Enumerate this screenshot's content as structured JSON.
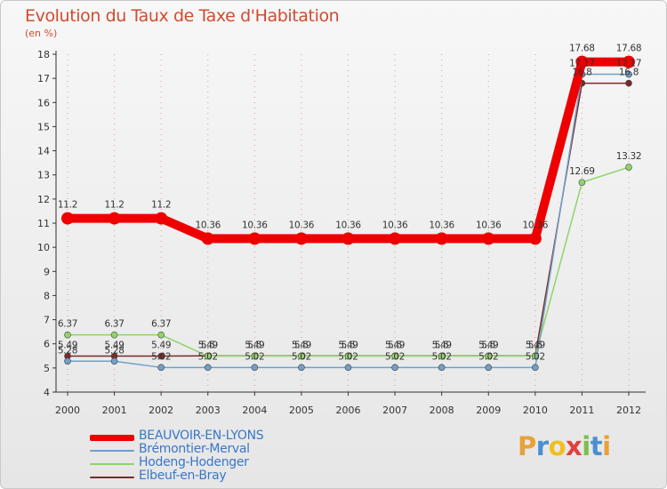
{
  "title": "Evolution du Taux de Taxe d'Habitation",
  "unit": "(en %)",
  "brand": {
    "text": "Proxiti",
    "colors": [
      "#e8a23a",
      "#4a8fd0",
      "#f0c020",
      "#e04040",
      "#7cc04a",
      "#4a8fd0",
      "#e8a23a"
    ]
  },
  "colors": {
    "title": "#d24b2f",
    "axis": "#333333",
    "grid": "#d94a4a",
    "legend_text": "#3a77c8"
  },
  "chart_data": {
    "type": "line",
    "title": "Evolution du Taux de Taxe d'Habitation",
    "ylabel": "(en %)",
    "xlabel": "",
    "ylim": [
      4,
      18
    ],
    "yticks": [
      4,
      5,
      6,
      7,
      8,
      9,
      10,
      11,
      12,
      13,
      14,
      15,
      16,
      17,
      18
    ],
    "categories": [
      "2000",
      "2001",
      "2002",
      "2003",
      "2004",
      "2005",
      "2006",
      "2007",
      "2008",
      "2009",
      "2010",
      "2011",
      "2012"
    ],
    "series": [
      {
        "name": "BEAUVOIR-EN-LYONS",
        "color": "#ee0000",
        "width": 10,
        "marker": 7,
        "values": [
          11.2,
          11.2,
          11.2,
          10.36,
          10.36,
          10.36,
          10.36,
          10.36,
          10.36,
          10.36,
          10.36,
          17.68,
          17.68
        ],
        "labels": [
          "11.2",
          "11.2",
          "11.2",
          "10.36",
          "10.36",
          "10.36",
          "10.36",
          "10.36",
          "10.36",
          "10.36",
          "10.36",
          "17.68",
          "17.68"
        ]
      },
      {
        "name": "Brémontier-Merval",
        "color": "#6fa0c8",
        "width": 1.5,
        "marker": 3.5,
        "values": [
          5.28,
          5.28,
          5.02,
          5.02,
          5.02,
          5.02,
          5.02,
          5.02,
          5.02,
          5.02,
          5.02,
          17.17,
          17.17
        ],
        "labels": [
          "5.28",
          "5.28",
          "5.02",
          "5.02",
          "5.02",
          "5.02",
          "5.02",
          "5.02",
          "5.02",
          "5.02",
          "5.02",
          "17.17",
          "17.17"
        ]
      },
      {
        "name": "Hodeng-Hodenger",
        "color": "#8fd46a",
        "width": 1.5,
        "marker": 3.5,
        "values": [
          6.37,
          6.37,
          6.37,
          5.49,
          5.49,
          5.49,
          5.49,
          5.49,
          5.49,
          5.49,
          5.49,
          12.69,
          13.32
        ],
        "labels": [
          "6.37",
          "6.37",
          "6.37",
          "5.49",
          "5.49",
          "5.49",
          "5.49",
          "5.49",
          "5.49",
          "5.49",
          "5.49",
          "12.69",
          "13.32"
        ]
      },
      {
        "name": "Elbeuf-en-Bray",
        "color": "#7a2a2a",
        "width": 1.5,
        "marker": 3.5,
        "values": [
          5.49,
          5.49,
          5.49,
          5.5,
          5.5,
          5.5,
          5.5,
          5.5,
          5.5,
          5.5,
          5.5,
          16.8,
          16.8
        ],
        "labels": [
          "5.49",
          "5.49",
          "5.49",
          "5.5",
          "5.5",
          "5.5",
          "5.5",
          "5.5",
          "5.5",
          "5.5",
          "5.5",
          "16.8",
          "16.8"
        ]
      }
    ]
  }
}
